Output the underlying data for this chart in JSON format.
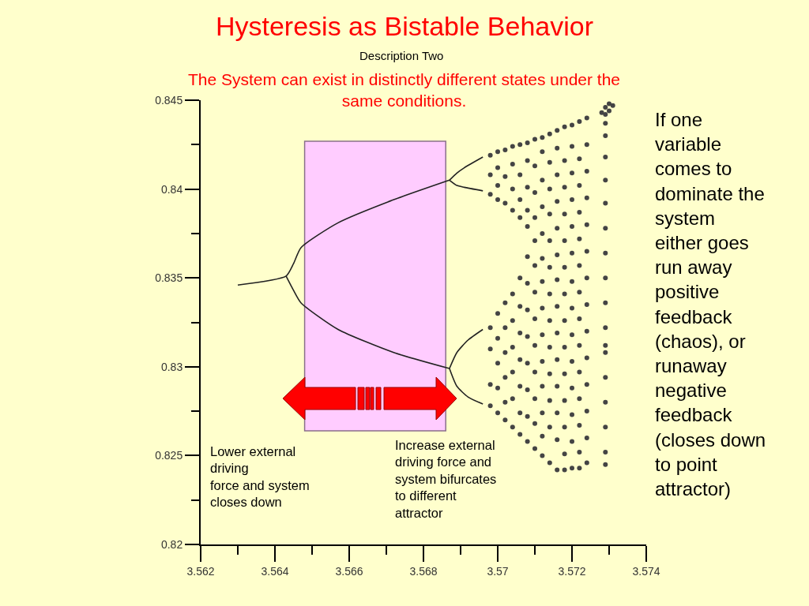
{
  "chart_data": {
    "type": "scatter",
    "title": "Hysteresis as Bistable Behavior",
    "subtitle": "Description Two",
    "annotations": [
      "The System can exist in distinctly different states under the\nsame conditions.",
      "Lower external\ndriving\nforce and system\ncloses down",
      "Increase external\ndriving force and\nsystem bifurcates\nto different\nattractor",
      "If one\nvariable\ncomes to\ndominate the\nsystem\neither goes\nrun away\npositive\nfeedback\n(chaos), or\nrunaway\nnegative\nfeedback\n(closes down\nto point\nattractor)"
    ],
    "xlim": [
      3.562,
      3.574
    ],
    "ylim": [
      0.82,
      0.845
    ],
    "xticks": [
      3.562,
      {
        "value": 3.563,
        "label": null
      },
      3.564,
      {
        "value": 3.565,
        "label": null
      },
      3.566,
      {
        "value": 3.567,
        "label": null
      },
      3.568,
      {
        "value": 3.569,
        "label": null
      },
      3.57,
      {
        "value": 3.571,
        "label": null
      },
      3.572,
      {
        "value": 3.573,
        "label": null
      },
      3.574
    ],
    "yticks": [
      0.82,
      {
        "value": 0.8225,
        "label": null
      },
      0.825,
      {
        "value": 0.8275,
        "label": null
      },
      0.83,
      {
        "value": 0.8325,
        "label": null
      },
      0.835,
      {
        "value": 0.8375,
        "label": null
      },
      0.84,
      {
        "value": 0.8425,
        "label": null
      },
      0.845
    ],
    "marker": "circle",
    "bands": [
      {
        "axis": "x",
        "from": 3.5648,
        "to": 3.5686,
        "color": "#ffccff"
      }
    ],
    "series": [
      {
        "type": "line",
        "marker": "none",
        "color": "#222222",
        "x": [
          3.563,
          3.5643,
          3.5645,
          3.5647,
          3.5657,
          3.5672,
          3.5687
        ],
        "values": [
          0.8346,
          0.8351,
          0.8358,
          0.8367,
          0.8381,
          0.8394,
          0.8405
        ]
      },
      {
        "type": "line",
        "marker": "none",
        "color": "#222222",
        "x": [
          3.5643,
          3.5645,
          3.5647,
          3.5657,
          3.5672,
          3.5687
        ],
        "values": [
          0.8351,
          0.8343,
          0.8336,
          0.8321,
          0.8308,
          0.8299
        ]
      },
      {
        "type": "line",
        "marker": "none",
        "color": "#222222",
        "x": [
          3.5687,
          3.5689,
          3.5691,
          3.5696
        ],
        "values": [
          0.8405,
          0.8409,
          0.8412,
          0.8418
        ]
      },
      {
        "type": "line",
        "marker": "none",
        "color": "#222222",
        "x": [
          3.5687,
          3.5689,
          3.5691,
          3.5696
        ],
        "values": [
          0.8405,
          0.8402,
          0.8401,
          0.8399
        ]
      },
      {
        "type": "line",
        "marker": "none",
        "color": "#222222",
        "x": [
          3.5687,
          3.5689,
          3.5692,
          3.5696
        ],
        "values": [
          0.8299,
          0.8308,
          0.8315,
          0.8321
        ]
      },
      {
        "type": "line",
        "marker": "none",
        "color": "#222222",
        "x": [
          3.5687,
          3.5689,
          3.5692,
          3.5696
        ],
        "values": [
          0.8299,
          0.8289,
          0.8283,
          0.8279
        ]
      },
      {
        "color": "#444444",
        "x": [
          3.5698,
          3.5698,
          3.5698,
          3.5698,
          3.5698,
          3.5698,
          3.5698,
          3.57,
          3.57,
          3.57,
          3.57,
          3.57,
          3.57,
          3.57,
          3.57,
          3.57,
          3.5702,
          3.5702,
          3.5702,
          3.5702,
          3.5702,
          3.5702,
          3.5702,
          3.5702,
          3.5702,
          3.5704,
          3.5704,
          3.5704,
          3.5704,
          3.5704,
          3.5704,
          3.5704,
          3.5704,
          3.5704,
          3.5704,
          3.5706,
          3.5706,
          3.5706,
          3.5706,
          3.5706,
          3.5706,
          3.5706,
          3.5706,
          3.5706,
          3.5706,
          3.5706,
          3.5708,
          3.5708,
          3.5708,
          3.5708,
          3.5708,
          3.5708,
          3.5708,
          3.5708,
          3.5708,
          3.5708,
          3.5708,
          3.5708,
          3.5708,
          3.571,
          3.571,
          3.571,
          3.571,
          3.571,
          3.571,
          3.571,
          3.571,
          3.571,
          3.571,
          3.571,
          3.571,
          3.571,
          3.5712,
          3.5712,
          3.5712,
          3.5712,
          3.5712,
          3.5712,
          3.5712,
          3.5712,
          3.5712,
          3.5712,
          3.5712,
          3.5712,
          3.5712,
          3.5712,
          3.5714,
          3.5714,
          3.5714,
          3.5714,
          3.5714,
          3.5714,
          3.5714,
          3.5714,
          3.5714,
          3.5714,
          3.5714,
          3.5714,
          3.5714,
          3.5716,
          3.5716,
          3.5716,
          3.5716,
          3.5716,
          3.5716,
          3.5716,
          3.5716,
          3.5716,
          3.5716,
          3.5716,
          3.5716,
          3.5716,
          3.5716,
          3.5718,
          3.5718,
          3.5718,
          3.5718,
          3.5718,
          3.5718,
          3.5718,
          3.5718,
          3.5718,
          3.5718,
          3.5718,
          3.5718,
          3.5718,
          3.5718,
          3.572,
          3.572,
          3.572,
          3.572,
          3.572,
          3.572,
          3.572,
          3.572,
          3.572,
          3.572,
          3.572,
          3.572,
          3.572,
          3.572,
          3.5722,
          3.5722,
          3.5722,
          3.5722,
          3.5722,
          3.5722,
          3.5722,
          3.5722,
          3.5722,
          3.5722,
          3.5722,
          3.5722,
          3.5722,
          3.5722,
          3.5724,
          3.5724,
          3.5724,
          3.5724,
          3.5724,
          3.5724,
          3.5724,
          3.5724,
          3.5724,
          3.5724,
          3.5724,
          3.5724,
          3.5724,
          3.5724
        ],
        "values": [
          0.8419,
          0.8408,
          0.8397,
          0.8322,
          0.831,
          0.829,
          0.8278,
          0.8421,
          0.8412,
          0.8402,
          0.8394,
          0.833,
          0.8316,
          0.8302,
          0.8288,
          0.8274,
          0.8422,
          0.8407,
          0.8392,
          0.8336,
          0.8322,
          0.8308,
          0.8294,
          0.828,
          0.827,
          0.8424,
          0.8414,
          0.84,
          0.8388,
          0.8341,
          0.8326,
          0.8311,
          0.8297,
          0.8282,
          0.8266,
          0.8425,
          0.8408,
          0.8394,
          0.8384,
          0.835,
          0.8334,
          0.8319,
          0.8304,
          0.8289,
          0.8274,
          0.8262,
          0.8426,
          0.8416,
          0.8401,
          0.8388,
          0.8379,
          0.8362,
          0.8347,
          0.8332,
          0.8317,
          0.8302,
          0.8287,
          0.8272,
          0.8258,
          0.8428,
          0.8413,
          0.8398,
          0.8384,
          0.8371,
          0.8357,
          0.8342,
          0.8327,
          0.8312,
          0.8297,
          0.8282,
          0.8268,
          0.8254,
          0.8429,
          0.8421,
          0.8405,
          0.839,
          0.8375,
          0.8361,
          0.8348,
          0.8333,
          0.8318,
          0.8303,
          0.8289,
          0.8274,
          0.8261,
          0.825,
          0.8431,
          0.8415,
          0.84,
          0.8386,
          0.8371,
          0.8356,
          0.8341,
          0.8326,
          0.8311,
          0.8296,
          0.8281,
          0.8266,
          0.8246,
          0.8433,
          0.8423,
          0.8408,
          0.8393,
          0.8378,
          0.8363,
          0.8349,
          0.8334,
          0.8319,
          0.8304,
          0.8289,
          0.8274,
          0.8259,
          0.8242,
          0.8435,
          0.8416,
          0.8401,
          0.8386,
          0.8371,
          0.8356,
          0.8341,
          0.8326,
          0.8311,
          0.8296,
          0.8281,
          0.8266,
          0.8251,
          0.8242,
          0.8436,
          0.8424,
          0.8409,
          0.8394,
          0.8379,
          0.8364,
          0.8348,
          0.8333,
          0.8318,
          0.8303,
          0.8288,
          0.8273,
          0.8258,
          0.8243,
          0.8438,
          0.8417,
          0.8402,
          0.8387,
          0.8372,
          0.8357,
          0.8342,
          0.8327,
          0.8312,
          0.8297,
          0.8282,
          0.8267,
          0.8252,
          0.8243,
          0.844,
          0.8425,
          0.841,
          0.8395,
          0.838,
          0.8365,
          0.835,
          0.8335,
          0.832,
          0.8305,
          0.829,
          0.8275,
          0.826,
          0.8246
        ]
      },
      {
        "color": "#444444",
        "x": [
          3.5728,
          3.5729,
          3.573,
          3.5731,
          3.573,
          3.5729,
          3.5729,
          3.5729,
          3.5729,
          3.5729,
          3.5729,
          3.5729,
          3.5729,
          3.5729,
          3.5729,
          3.5729,
          3.5729,
          3.5729,
          3.5729,
          3.5729,
          3.5729,
          3.5729,
          3.5729
        ],
        "values": [
          0.8443,
          0.8446,
          0.8448,
          0.8447,
          0.8444,
          0.8442,
          0.843,
          0.8418,
          0.8405,
          0.8392,
          0.8378,
          0.8364,
          0.835,
          0.8336,
          0.8322,
          0.8312,
          0.8308,
          0.8294,
          0.828,
          0.8266,
          0.8252,
          0.8245,
          0.8437
        ]
      }
    ]
  }
}
